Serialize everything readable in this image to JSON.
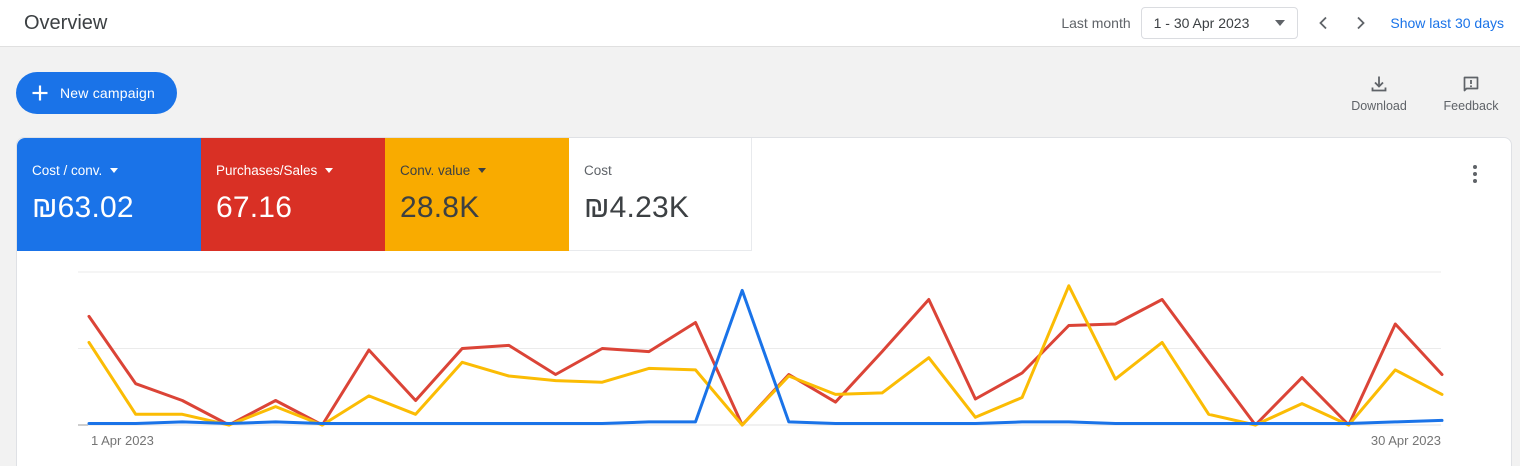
{
  "header": {
    "title": "Overview",
    "period_label": "Last month",
    "date_range": "1 - 30 Apr 2023",
    "show_last_30_days": "Show last 30 days"
  },
  "toolbar": {
    "new_campaign": "New campaign",
    "download": "Download",
    "feedback": "Feedback"
  },
  "scorecards": [
    {
      "label": "Cost / conv.",
      "value": "₪63.02",
      "color": "#1a73e8",
      "text_color": "#ffffff",
      "dropdown": true
    },
    {
      "label": "Purchases/Sales",
      "value": "67.16",
      "color": "#d93025",
      "text_color": "#ffffff",
      "dropdown": true
    },
    {
      "label": "Conv. value",
      "value": "28.8K",
      "color": "#f9ab00",
      "text_color": "#3c4043",
      "dropdown": true
    },
    {
      "label": "Cost",
      "value": "₪4.23K",
      "color": "#ffffff",
      "text_color": "#3c4043",
      "dropdown": false
    }
  ],
  "chart_data": {
    "type": "line",
    "x_label_start": "1 Apr 2023",
    "x_label_end": "30 Apr 2023",
    "x_unit": "day of April 2023",
    "x": [
      1,
      2,
      3,
      4,
      5,
      6,
      7,
      8,
      9,
      10,
      11,
      12,
      13,
      14,
      15,
      16,
      17,
      18,
      19,
      20,
      21,
      22,
      23,
      24,
      25,
      26,
      27,
      28,
      29,
      30
    ],
    "y_axis_note": "y axis unlabeled in UI; values normalized so top gridline = 100, baseline = 0",
    "ylim": [
      0,
      110
    ],
    "gridlines": [
      0,
      50,
      100
    ],
    "legend_position": "none",
    "series": [
      {
        "name": "Purchases/Sales",
        "color": "#db4437",
        "values": [
          71,
          27,
          16,
          0,
          16,
          0,
          49,
          16,
          50,
          52,
          33,
          50,
          48,
          67,
          0,
          33,
          15,
          48,
          82,
          17,
          34,
          65,
          66,
          82,
          41,
          0,
          31,
          0,
          66,
          33
        ]
      },
      {
        "name": "Conv. value",
        "color": "#fbbc04",
        "values": [
          54,
          7,
          7,
          0,
          12,
          0,
          19,
          7,
          41,
          32,
          29,
          28,
          37,
          36,
          0,
          32,
          20,
          21,
          44,
          5,
          18,
          91,
          30,
          54,
          7,
          0,
          14,
          0,
          36,
          20
        ]
      },
      {
        "name": "Cost / conv.",
        "color": "#1a73e8",
        "values": [
          1,
          1,
          2,
          1,
          2,
          1,
          1,
          1,
          1,
          1,
          1,
          1,
          2,
          2,
          88,
          2,
          1,
          1,
          1,
          1,
          2,
          2,
          1,
          1,
          1,
          1,
          1,
          1,
          2,
          3
        ]
      }
    ]
  }
}
